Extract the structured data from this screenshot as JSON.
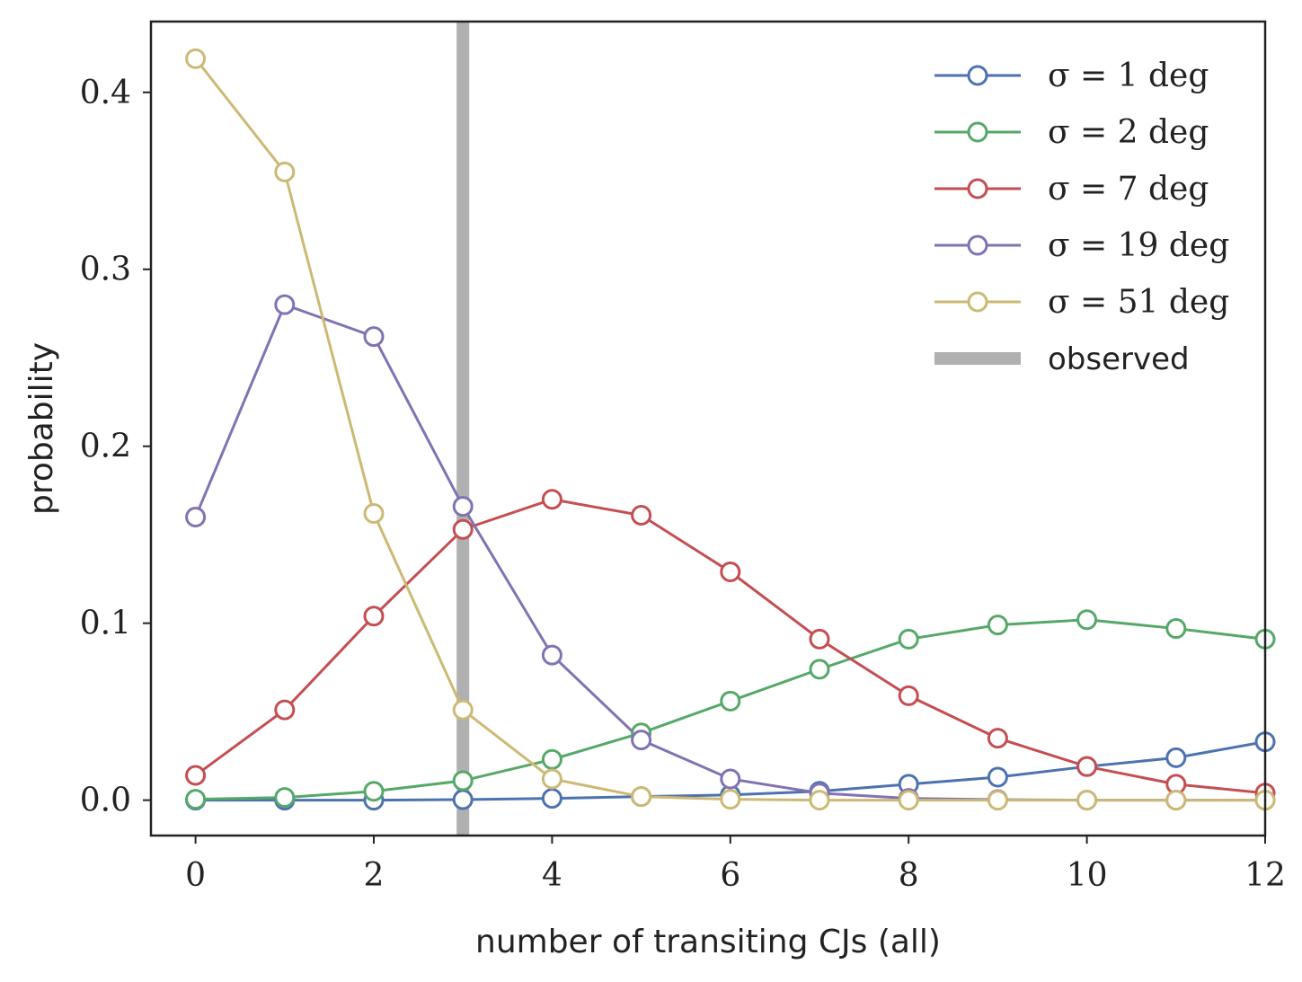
{
  "chart_data": {
    "type": "line",
    "title": "",
    "xlabel": "number of transiting CJs (all)",
    "ylabel": "probability",
    "xlim": [
      -0.5,
      12
    ],
    "ylim": [
      -0.02,
      0.44
    ],
    "xticks": [
      0,
      2,
      4,
      6,
      8,
      10,
      12
    ],
    "xtick_labels": [
      "0",
      "2",
      "4",
      "6",
      "8",
      "10",
      "12"
    ],
    "yticks": [
      0.0,
      0.1,
      0.2,
      0.3,
      0.4
    ],
    "ytick_labels": [
      "0.0",
      "0.1",
      "0.2",
      "0.3",
      "0.4"
    ],
    "grid": false,
    "legend_position": "top-right",
    "x": [
      0,
      1,
      2,
      3,
      4,
      5,
      6,
      7,
      8,
      9,
      10,
      11,
      12
    ],
    "series": [
      {
        "name": "σ = 1 deg",
        "color": "#4c72b0",
        "values": [
          0.0,
          0.0,
          0.0,
          0.0003,
          0.001,
          0.002,
          0.003,
          0.005,
          0.009,
          0.013,
          0.019,
          0.024,
          0.033
        ]
      },
      {
        "name": "σ = 2 deg",
        "color": "#55a868",
        "values": [
          0.0005,
          0.0015,
          0.005,
          0.011,
          0.023,
          0.038,
          0.056,
          0.074,
          0.091,
          0.099,
          0.102,
          0.097,
          0.091
        ]
      },
      {
        "name": "σ = 7 deg",
        "color": "#c44e52",
        "values": [
          0.014,
          0.051,
          0.104,
          0.153,
          0.17,
          0.161,
          0.129,
          0.091,
          0.059,
          0.035,
          0.019,
          0.009,
          0.004
        ]
      },
      {
        "name": "σ = 19 deg",
        "color": "#8172b2",
        "values": [
          0.16,
          0.28,
          0.262,
          0.166,
          0.082,
          0.034,
          0.012,
          0.004,
          0.001,
          0.0003,
          0.0,
          0.0,
          0.0
        ]
      },
      {
        "name": "σ = 51 deg",
        "color": "#ccb974",
        "values": [
          0.419,
          0.355,
          0.162,
          0.051,
          0.012,
          0.002,
          0.0005,
          0.0,
          0.0,
          0.0,
          0.0,
          0.0,
          0.0
        ]
      }
    ],
    "vline": {
      "name": "observed",
      "x": 3,
      "color": "#b0b0b0"
    }
  }
}
